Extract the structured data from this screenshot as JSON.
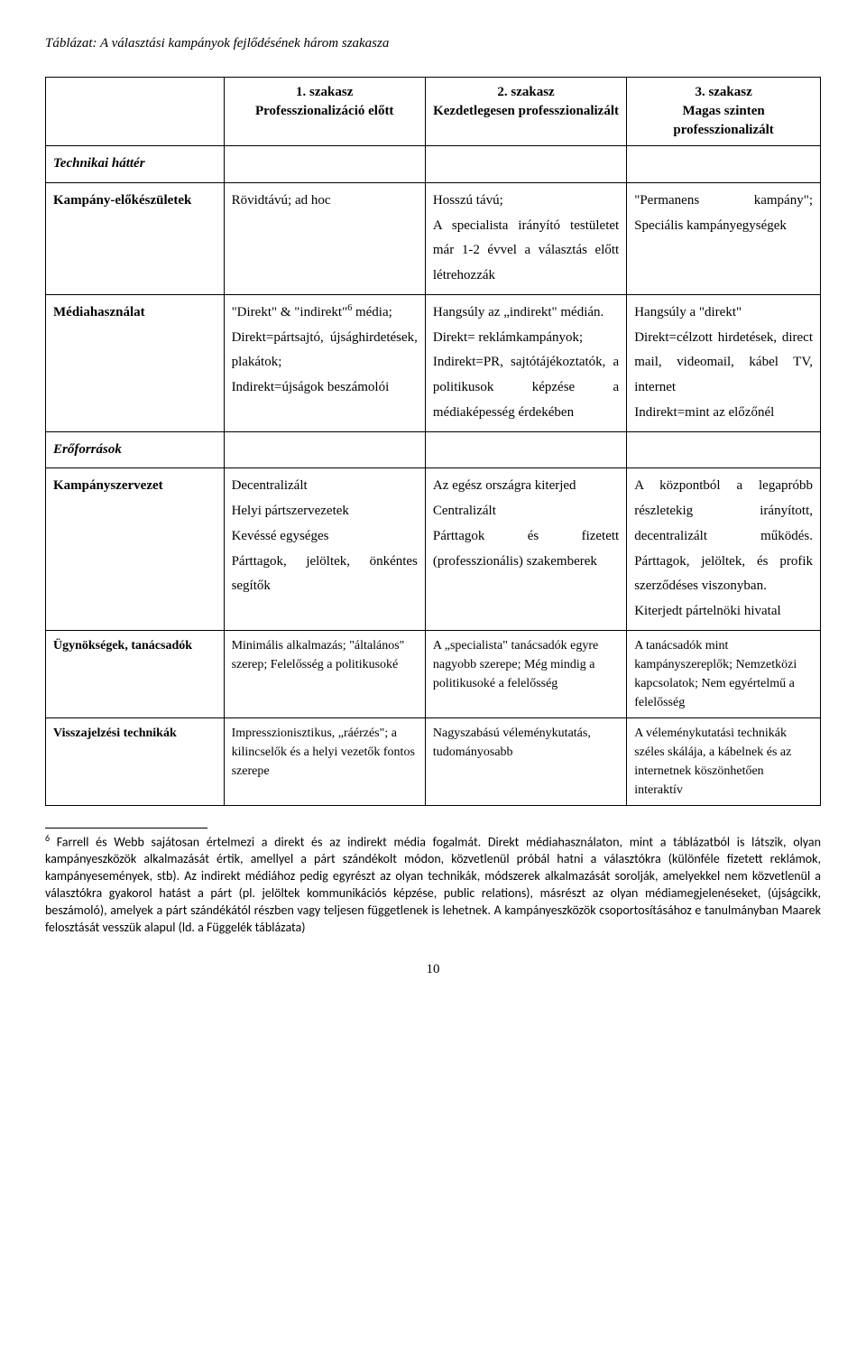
{
  "title": "Táblázat: A választási kampányok fejlődésének három szakasza",
  "headers": {
    "empty": "",
    "col1": "1. szakasz\nProfesszionalizáció előtt",
    "col2": "2. szakasz\nKezdetlegesen professzionalizált",
    "col3": "3. szakasz\nMagas szinten professzionalizált"
  },
  "rows": {
    "section1": "Technikai háttér",
    "r1_label": "Kampány-előkészületek",
    "r1_c1": "Rövidtávú; ad hoc",
    "r1_c2": "Hosszú távú;\nA specialista irányító testületet már 1-2 évvel a választás előtt létrehozzák",
    "r1_c3": "\"Permanens kampány\"; Speciális kampányegységek",
    "r2_label": "Médiahasználat",
    "r2_c1": "\"Direkt\" & \"indirekt\" média;\nDirekt=pártsajtó, újsághirdetések, plakátok;\nIndirekt=újságok beszámolói",
    "r2_c1_sup": "6",
    "r2_c2": "Hangsúly az „indirekt\" médián.\nDirekt= reklámkampányok;\nIndirekt=PR, sajtótájékoztatók, a politikusok képzése a médiaképesség érdekében",
    "r2_c3": "Hangsúly a \"direkt\"\nDirekt=célzott hirdetések, direct mail, videomail, kábel TV, internet\nIndirekt=mint az előzőnél",
    "section2": "Erőforrások",
    "r3_label": "Kampányszervezet",
    "r3_c1": "Decentralizált\nHelyi pártszervezetek\nKevéssé egységes\nPárttagok, jelöltek, önkéntes segítők",
    "r3_c2": "Az egész országra kiterjed\nCentralizált\nPárttagok és fizetett (professzionális) szakemberek",
    "r3_c3": "A központból a legapróbb részletekig irányított, decentralizált működés. Párttagok, jelöltek, és profik szerződéses viszonyban.\nKiterjedt pártelnöki hivatal",
    "r4_label": "Ügynökségek, tanácsadók",
    "r4_c1": "Minimális alkalmazás; \"általános\" szerep; Felelősség a politikusoké",
    "r4_c2": "A „specialista\" tanácsadók egyre nagyobb szerepe; Még mindig a politikusoké a felelősség",
    "r4_c3": "A tanácsadók mint kampányszereplők; Nemzetközi kapcsolatok; Nem egyértelmű a felelősség",
    "r5_label": "Visszajelzési technikák",
    "r5_c1": "Impresszionisztikus, „ráérzés\"; a kilincselők és a helyi vezetők fontos szerepe",
    "r5_c2": "Nagyszabású véleménykutatás, tudományosabb",
    "r5_c3": "A véleménykutatási technikák széles skálája, a kábelnek és az internetnek köszönhetően interaktív"
  },
  "footnote": {
    "marker": "6",
    "text": "Farrell és Webb sajátosan értelmezi a direkt és az indirekt média fogalmát. Direkt médiahasználaton, mint a táblázatból is látszik, olyan kampányeszközök alkalmazását értik, amellyel a párt szándékolt módon, közvetlenül próbál hatni a választókra (különféle fizetett reklámok, kampányesemények, stb). Az indirekt médiához pedig egyrészt az olyan technikák, módszerek alkalmazását sorolják, amelyekkel nem közvetlenül a választókra gyakorol hatást a párt (pl. jelöltek kommunikációs képzése, public relations), másrészt az olyan médiamegjelenéseket, (újságcikk, beszámoló), amelyek a párt szándékától részben vagy teljesen függetlenek is lehetnek. A kampányeszközök csoportosításához e tanulmányban Maarek felosztását vesszük alapul (ld. a Függelék táblázata)"
  },
  "page_number": "10"
}
